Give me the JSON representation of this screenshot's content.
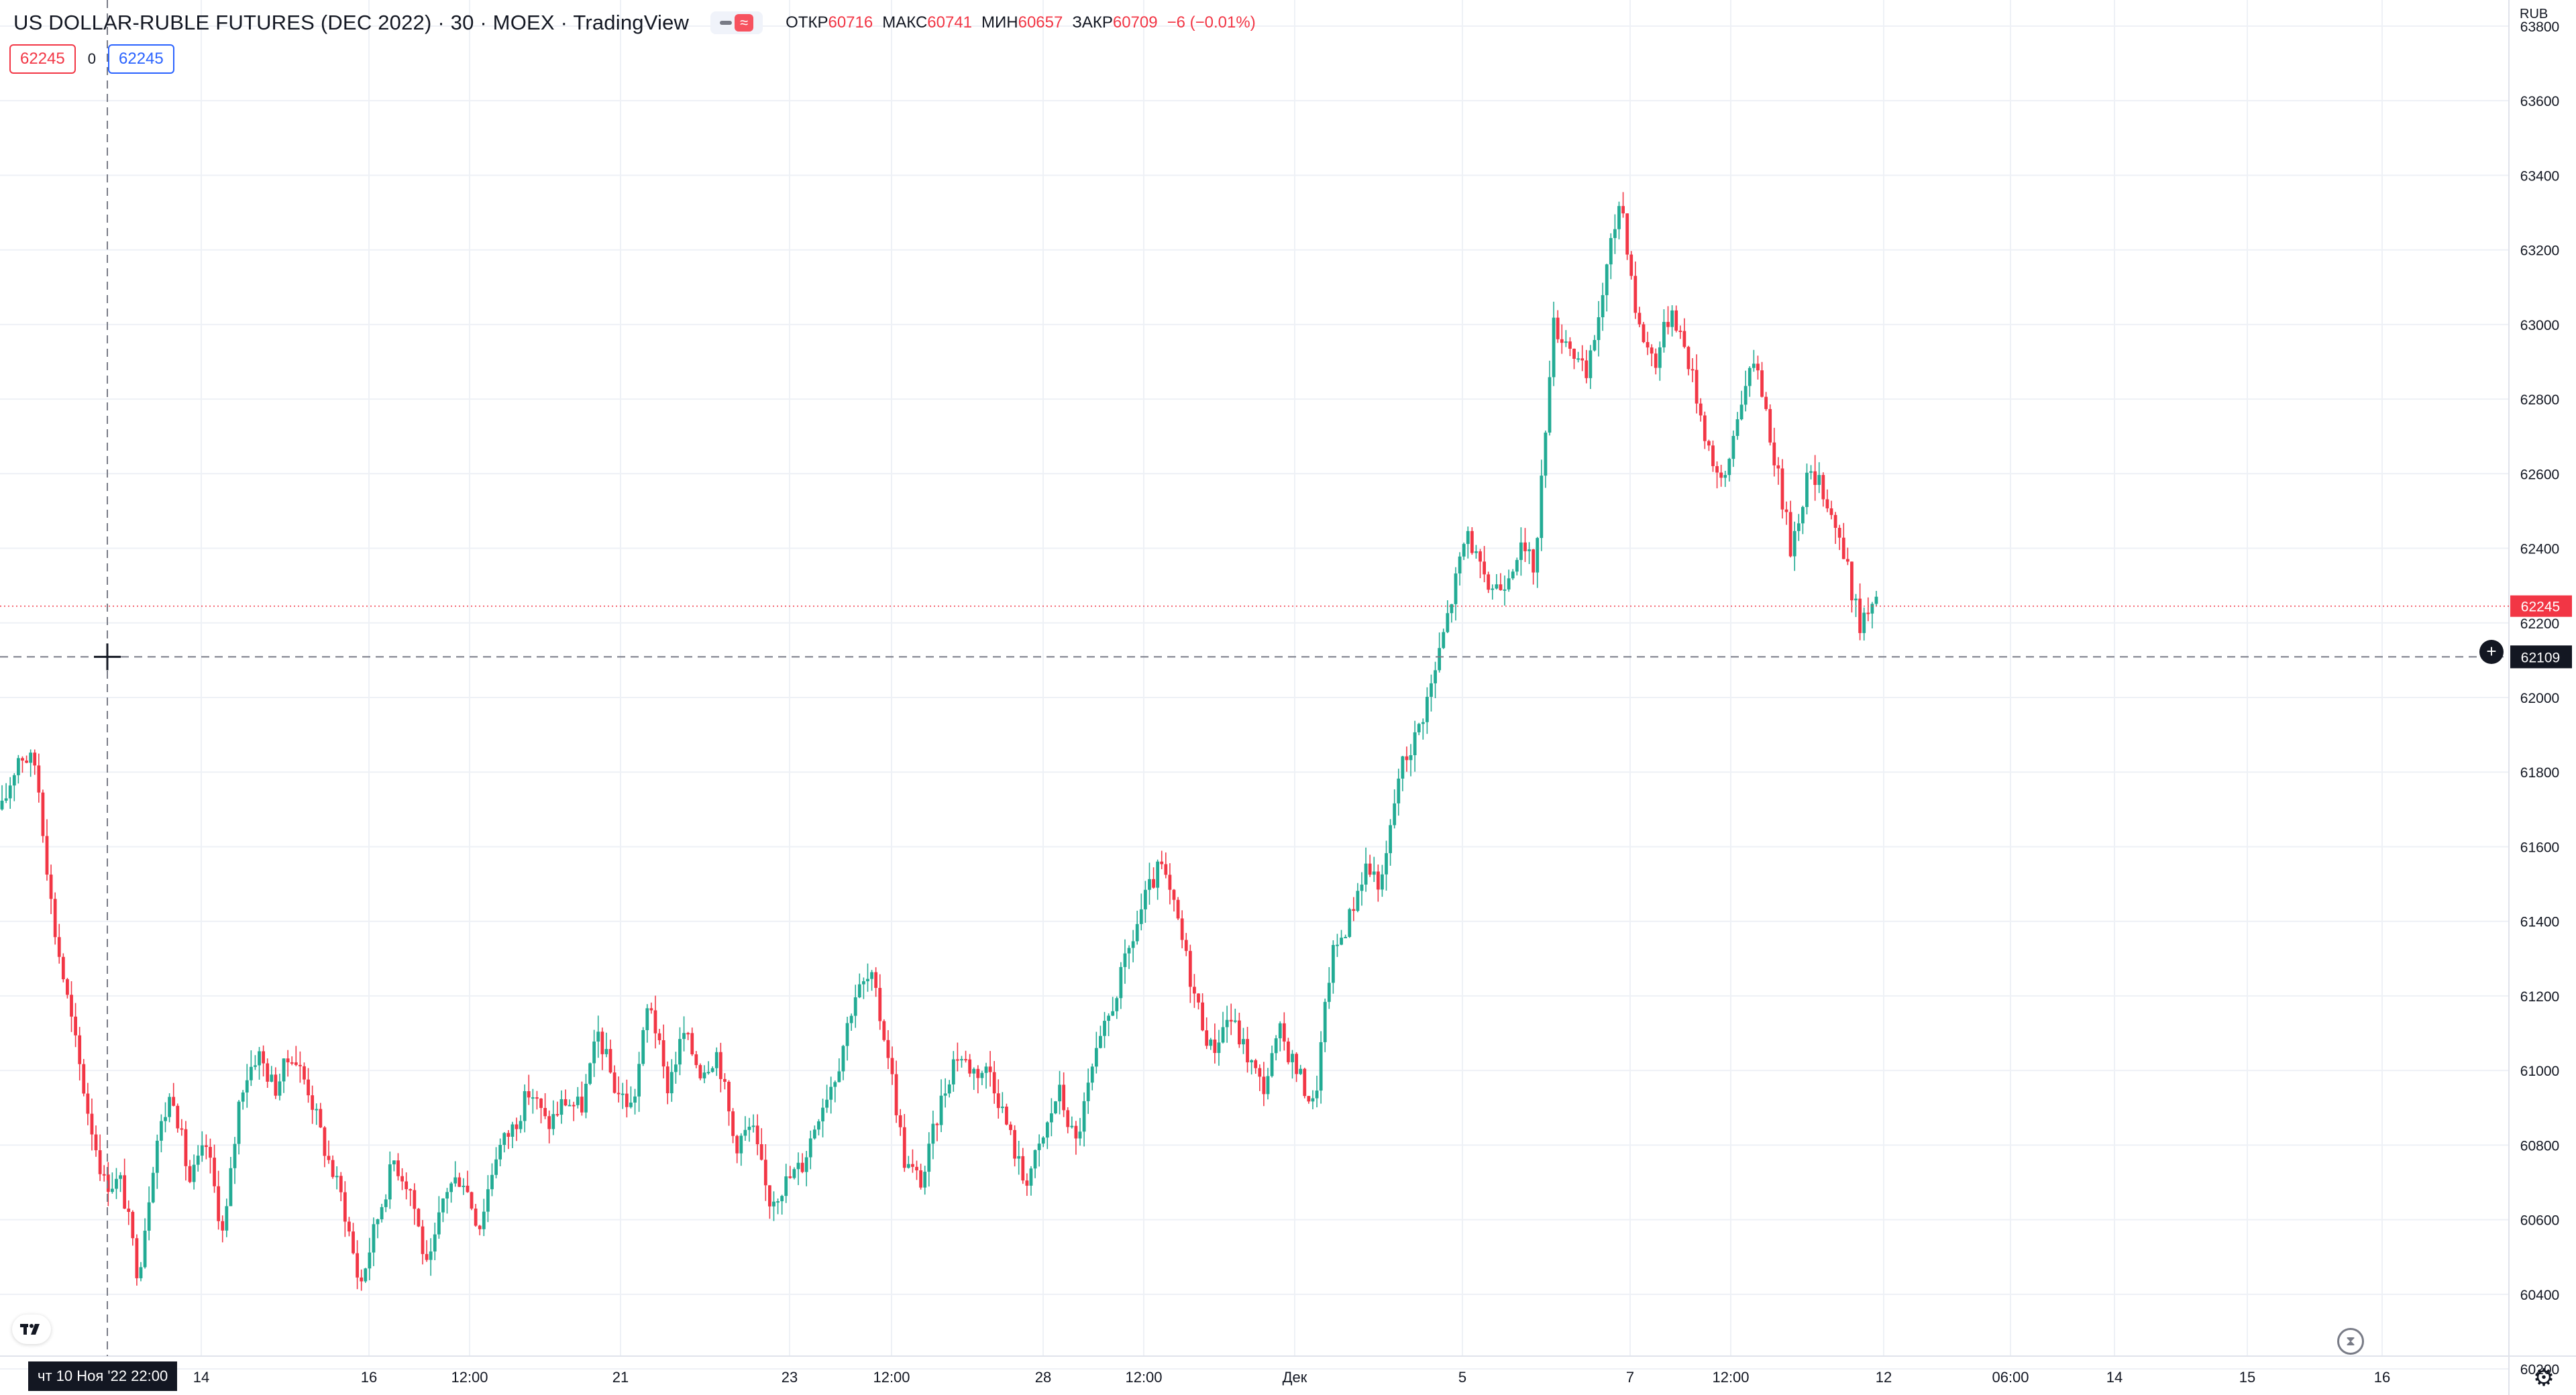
{
  "header": {
    "title": "US DOLLAR-RUBLE FUTURES (DEC 2022) · 30 · MOEX · TradingView",
    "toggle_icon": "≈",
    "ohlc": {
      "open_label": "ОТКР",
      "open": "60716",
      "high_label": "МАКС",
      "high": "60741",
      "low_label": "МИН",
      "low": "60657",
      "close_label": "ЗАКР",
      "close": "60709",
      "change": "−6 (−0.01%)"
    }
  },
  "toolbar_row": {
    "bid": "62245",
    "spread": "0",
    "ask": "62245"
  },
  "axis_currency": "RUB",
  "crosshair_time_label": "чт 10 Ноя '22   22:00",
  "last_price_label": "62245",
  "crosshair_price_label": "62109",
  "colors": {
    "up": "#22ab94",
    "down": "#f23645",
    "grid": "#eef1f6",
    "accent": "#2962ff"
  },
  "icons": [
    "tradingview-logo-icon",
    "settings-gear-icon",
    "add-alert-icon",
    "replay-hourglass-icon",
    "crosshair-icon"
  ],
  "chart_data": {
    "type": "candlestick",
    "timeframe": "30",
    "y_axis": {
      "ticks": [
        60200,
        60400,
        60600,
        60800,
        61000,
        61200,
        61400,
        61600,
        61800,
        62000,
        62200,
        62400,
        62600,
        62800,
        63000,
        63200,
        63400,
        63600,
        63800
      ],
      "ylim": [
        60130,
        63870
      ]
    },
    "x_axis_labels": [
      "14",
      "16",
      "12:00",
      "21",
      "23",
      "12:00",
      "28",
      "12:00",
      "Дек",
      "5",
      "7",
      "12:00",
      "12",
      "06:00",
      "14",
      "15",
      "16"
    ],
    "last_price": 62245,
    "crosshair_price": 62109,
    "close_path": [
      [
        "Nov 10 16:00",
        61700
      ],
      [
        "Nov 10 17:00",
        61850
      ],
      [
        "Nov 10 18:00",
        61820
      ],
      [
        "Nov 10 19:00",
        61400
      ],
      [
        "Nov 10 20:00",
        61150
      ],
      [
        "Nov 10 21:00",
        60900
      ],
      [
        "Nov 10 22:00",
        60700
      ],
      [
        "Nov 11 02:00",
        60700
      ],
      [
        "Nov 11 05:00",
        60450
      ],
      [
        "Nov 11 08:00",
        60800
      ],
      [
        "Nov 11 12:00",
        60950
      ],
      [
        "Nov 11 16:00",
        60700
      ],
      [
        "Nov 11 20:00",
        60800
      ],
      [
        "Nov 14 02:00",
        60550
      ],
      [
        "Nov 14 06:00",
        60950
      ],
      [
        "Nov 14 10:00",
        61050
      ],
      [
        "Nov 14 14:00",
        60950
      ],
      [
        "Nov 14 18:00",
        61050
      ],
      [
        "Nov 14 22:00",
        60950
      ],
      [
        "Nov 15 04:00",
        60780
      ],
      [
        "Nov 15 10:00",
        60650
      ],
      [
        "Nov 15 16:00",
        60420
      ],
      [
        "Nov 15 22:00",
        60600
      ],
      [
        "Nov 16 06:00",
        60760
      ],
      [
        "Nov 16 12:00",
        60680
      ],
      [
        "Nov 16 18:00",
        60450
      ],
      [
        "Nov 16 22:00",
        60680
      ],
      [
        "Nov 17 06:00",
        60720
      ],
      [
        "Nov 17 12:00",
        60580
      ],
      [
        "Nov 17 18:00",
        60780
      ],
      [
        "Nov 17 22:00",
        60850
      ],
      [
        "Nov 18 06:00",
        60950
      ],
      [
        "Nov 18 12:00",
        60850
      ],
      [
        "Nov 18 18:00",
        60920
      ],
      [
        "Nov 21 02:00",
        60900
      ],
      [
        "Nov 21 06:00",
        61100
      ],
      [
        "Nov 21 10:00",
        60950
      ],
      [
        "Nov 21 14:00",
        60900
      ],
      [
        "Nov 21 18:00",
        61200
      ],
      [
        "Nov 21 22:00",
        60950
      ],
      [
        "Nov 22 06:00",
        61100
      ],
      [
        "Nov 22 12:00",
        61000
      ],
      [
        "Nov 22 18:00",
        61050
      ],
      [
        "Nov 22 22:00",
        60800
      ],
      [
        "Nov 23 06:00",
        60850
      ],
      [
        "Nov 23 12:00",
        60650
      ],
      [
        "Nov 23 18:00",
        60700
      ],
      [
        "Nov 23 22:00",
        60750
      ],
      [
        "Nov 24 06:00",
        60900
      ],
      [
        "Nov 24 12:00",
        61000
      ],
      [
        "Nov 24 16:00",
        61200
      ],
      [
        "Nov 24 20:00",
        61250
      ],
      [
        "Nov 25 04:00",
        61050
      ],
      [
        "Nov 25 10:00",
        60750
      ],
      [
        "Nov 25 16:00",
        60700
      ],
      [
        "Nov 25 22:00",
        60900
      ],
      [
        "Nov 28 02:00",
        61050
      ],
      [
        "Nov 28 06:00",
        61000
      ],
      [
        "Nov 28 10:00",
        61000
      ],
      [
        "Nov 28 14:00",
        60850
      ],
      [
        "Nov 28 18:00",
        60700
      ],
      [
        "Nov 28 22:00",
        60800
      ],
      [
        "Nov 29 06:00",
        60950
      ],
      [
        "Nov 29 12:00",
        60800
      ],
      [
        "Nov 29 18:00",
        61000
      ],
      [
        "Nov 29 22:00",
        61150
      ],
      [
        "Nov 30 06:00",
        61300
      ],
      [
        "Nov 30 12:00",
        61450
      ],
      [
        "Nov 30 18:00",
        61550
      ],
      [
        "Nov 30 22:00",
        61400
      ],
      [
        "Dec 01 06:00",
        61200
      ],
      [
        "Dec 01 12:00",
        61050
      ],
      [
        "Dec 01 18:00",
        61150
      ],
      [
        "Dec 01 22:00",
        61050
      ],
      [
        "Dec 02 06:00",
        60950
      ],
      [
        "Dec 02 12:00",
        61100
      ],
      [
        "Dec 02 18:00",
        61000
      ],
      [
        "Dec 02 22:00",
        60900
      ],
      [
        "Dec 05 02:00",
        61300
      ],
      [
        "Dec 05 06:00",
        61400
      ],
      [
        "Dec 05 10:00",
        61550
      ],
      [
        "Dec 05 14:00",
        61500
      ],
      [
        "Dec 05 18:00",
        61800
      ],
      [
        "Dec 05 22:00",
        61900
      ],
      [
        "Dec 06 06:00",
        62050
      ],
      [
        "Dec 06 12:00",
        62250
      ],
      [
        "Dec 06 18:00",
        62450
      ],
      [
        "Dec 06 22:00",
        62300
      ],
      [
        "Dec 07 06:00",
        62300
      ],
      [
        "Dec 07 12:00",
        62400
      ],
      [
        "Dec 07 18:00",
        62350
      ],
      [
        "Dec 07 22:00",
        63000
      ],
      [
        "Dec 08 06:00",
        62950
      ],
      [
        "Dec 08 12:00",
        62850
      ],
      [
        "Dec 08 18:00",
        63100
      ],
      [
        "Dec 08 22:00",
        63350
      ],
      [
        "Dec 09 06:00",
        63000
      ],
      [
        "Dec 09 12:00",
        62900
      ],
      [
        "Dec 09 18:00",
        63050
      ],
      [
        "Dec 09 22:00",
        62900
      ],
      [
        "Dec 12 02:00",
        62700
      ],
      [
        "Dec 12 06:00",
        62550
      ],
      [
        "Dec 12 10:00",
        62800
      ],
      [
        "Dec 12 14:00",
        62900
      ],
      [
        "Dec 12 18:00",
        62650
      ],
      [
        "Dec 12 22:00",
        62400
      ],
      [
        "Dec 13 06:00",
        62600
      ],
      [
        "Dec 13 12:00",
        62550
      ],
      [
        "Dec 13 18:00",
        62400
      ],
      [
        "Dec 13 22:00",
        62200
      ],
      [
        "Dec 14 02:00",
        62245
      ]
    ]
  }
}
